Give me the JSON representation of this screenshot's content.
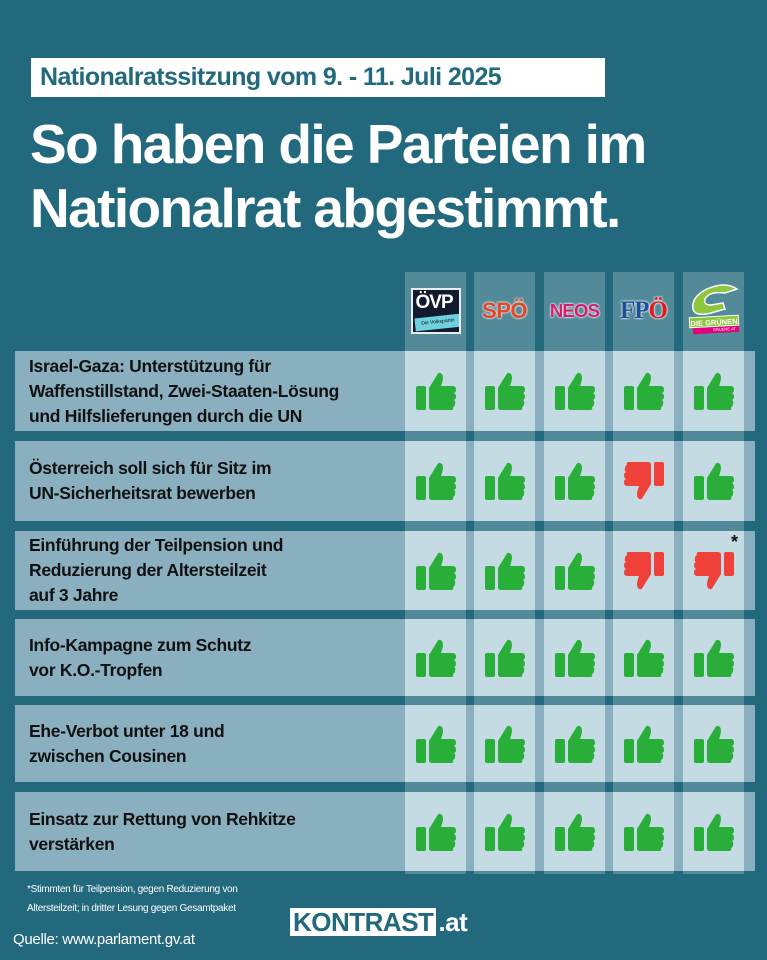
{
  "header": {
    "date_banner": "Nationalratssitzung vom 9. - 11. Juli 2025",
    "headline_line1": "So haben die Parteien im",
    "headline_line2": "Nationalrat abgestimmt."
  },
  "colors": {
    "background": "#22697d",
    "row_band": "#8ab0bf",
    "vote_yes": "#2aae3a",
    "vote_no": "#f0403a"
  },
  "parties": [
    {
      "id": "oevp",
      "name": "ÖVP",
      "tagline": "Die Volkspartei"
    },
    {
      "id": "spoe",
      "name": "SPÖ"
    },
    {
      "id": "neos",
      "name": "NEOS"
    },
    {
      "id": "fpoe",
      "name": "FPÖ",
      "logo_text_a": "FP",
      "logo_text_b": "Ö"
    },
    {
      "id": "gruene",
      "name": "DIE GRÜNEN",
      "url": "GRUENE.AT"
    }
  ],
  "motions": [
    {
      "lines": [
        "Israel-Gaza: Unterstützung für",
        "Waffenstillstand, Zwei-Staaten-Lösung",
        "und Hilfslieferungen durch die UN"
      ],
      "votes": [
        "yes",
        "yes",
        "yes",
        "yes",
        "yes"
      ]
    },
    {
      "lines": [
        "Österreich soll sich für Sitz im",
        "UN-Sicherheitsrat bewerben"
      ],
      "votes": [
        "yes",
        "yes",
        "yes",
        "no",
        "yes"
      ]
    },
    {
      "lines": [
        "Einführung der Teilpension und",
        "Reduzierung der Altersteilzeit",
        "auf 3 Jahre"
      ],
      "votes": [
        "yes",
        "yes",
        "yes",
        "no",
        "no"
      ],
      "note_marker_party": 4,
      "note_marker": "*"
    },
    {
      "lines": [
        "Info-Kampagne zum Schutz",
        "vor K.O.-Tropfen"
      ],
      "votes": [
        "yes",
        "yes",
        "yes",
        "yes",
        "yes"
      ]
    },
    {
      "lines": [
        "Ehe-Verbot unter 18 und",
        "zwischen Cousinen"
      ],
      "votes": [
        "yes",
        "yes",
        "yes",
        "yes",
        "yes"
      ]
    },
    {
      "lines": [
        "Einsatz zur Rettung von Rehkitze",
        "verstärken"
      ],
      "votes": [
        "yes",
        "yes",
        "yes",
        "yes",
        "yes"
      ]
    }
  ],
  "footer": {
    "footnote_line1": "*Stimmten für Teilpension, gegen Reduzierung von",
    "footnote_line2": "Altersteilzeit; in dritter Lesung gegen Gesamtpaket",
    "brand_box": "KONTRAST",
    "brand_tld": ".at",
    "source": "Quelle: www.parlament.gv.at"
  }
}
